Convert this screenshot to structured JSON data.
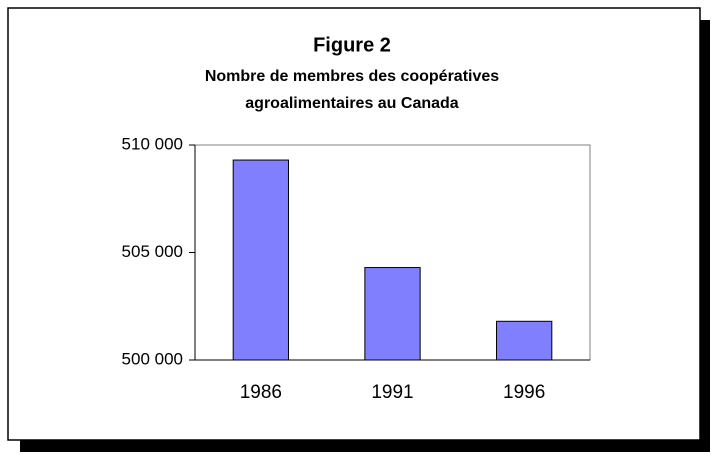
{
  "chart_data": {
    "type": "bar",
    "title": "Figure 2",
    "subtitle": [
      "Nombre de membres des coopératives",
      "agroalimentaires au Canada"
    ],
    "categories": [
      "1986",
      "1991",
      "1996"
    ],
    "values": [
      509300,
      504300,
      501800
    ],
    "color": "#8080ff",
    "ylim": [
      500000,
      510000
    ],
    "yticks": [
      {
        "value": 500000,
        "label": "500 000"
      },
      {
        "value": 505000,
        "label": "505 000"
      },
      {
        "value": 510000,
        "label": "510 000"
      }
    ]
  }
}
